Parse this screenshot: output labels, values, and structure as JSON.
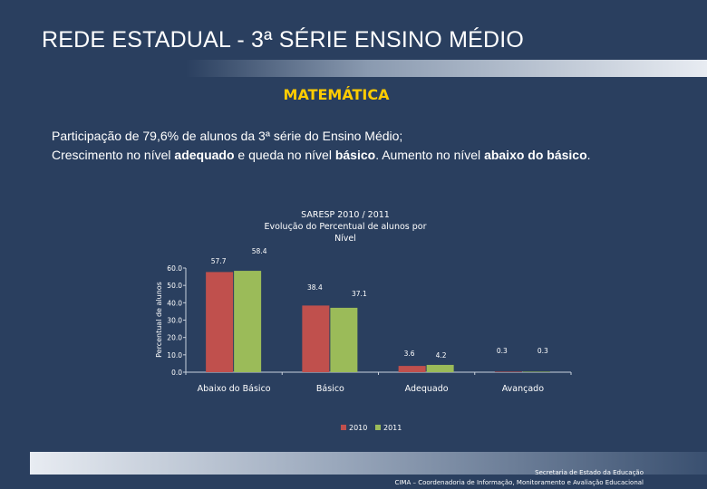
{
  "slide": {
    "title": "REDE ESTADUAL - 3ª SÉRIE ENSINO MÉDIO",
    "subject": "MATEMÁTICA"
  },
  "summary": {
    "line1": "Participação de 79,6% de alunos da 3ª série do Ensino Médio;",
    "s1": "Crescimento no nível ",
    "b1": "adequado",
    "s2": " e queda no nível ",
    "b2": "básico",
    "s3": ". Aumento no nível ",
    "b3": "abaixo do básico",
    "s4": "."
  },
  "chart_data": {
    "type": "bar",
    "title": "SARESP 2010 / 2011 Evolução do Percentual de alunos por Nível",
    "title_lines": [
      "SARESP 2010 / 2011",
      "Evolução do Percentual de alunos por",
      "Nível"
    ],
    "ylabel": "Percentual de alunos",
    "xlabel": "",
    "categories": [
      "Abaixo do Básico",
      "Básico",
      "Adequado",
      "Avançado"
    ],
    "series": [
      {
        "name": "2010",
        "color": "#c0504d",
        "values": [
          57.7,
          38.4,
          3.6,
          0.3
        ]
      },
      {
        "name": "2011",
        "color": "#9bbb59",
        "values": [
          58.4,
          37.1,
          4.2,
          0.3
        ]
      }
    ],
    "ylim": [
      0,
      60
    ],
    "yticks": [
      0.0,
      10.0,
      20.0,
      30.0,
      40.0,
      50.0,
      60.0
    ],
    "grid": false,
    "legend": "bottom"
  },
  "footer": {
    "line1": "Secretaria de Estado da Educação",
    "line2": "CIMA – Coordenadoria de Informação, Monitoramento e Avaliação Educacional"
  }
}
